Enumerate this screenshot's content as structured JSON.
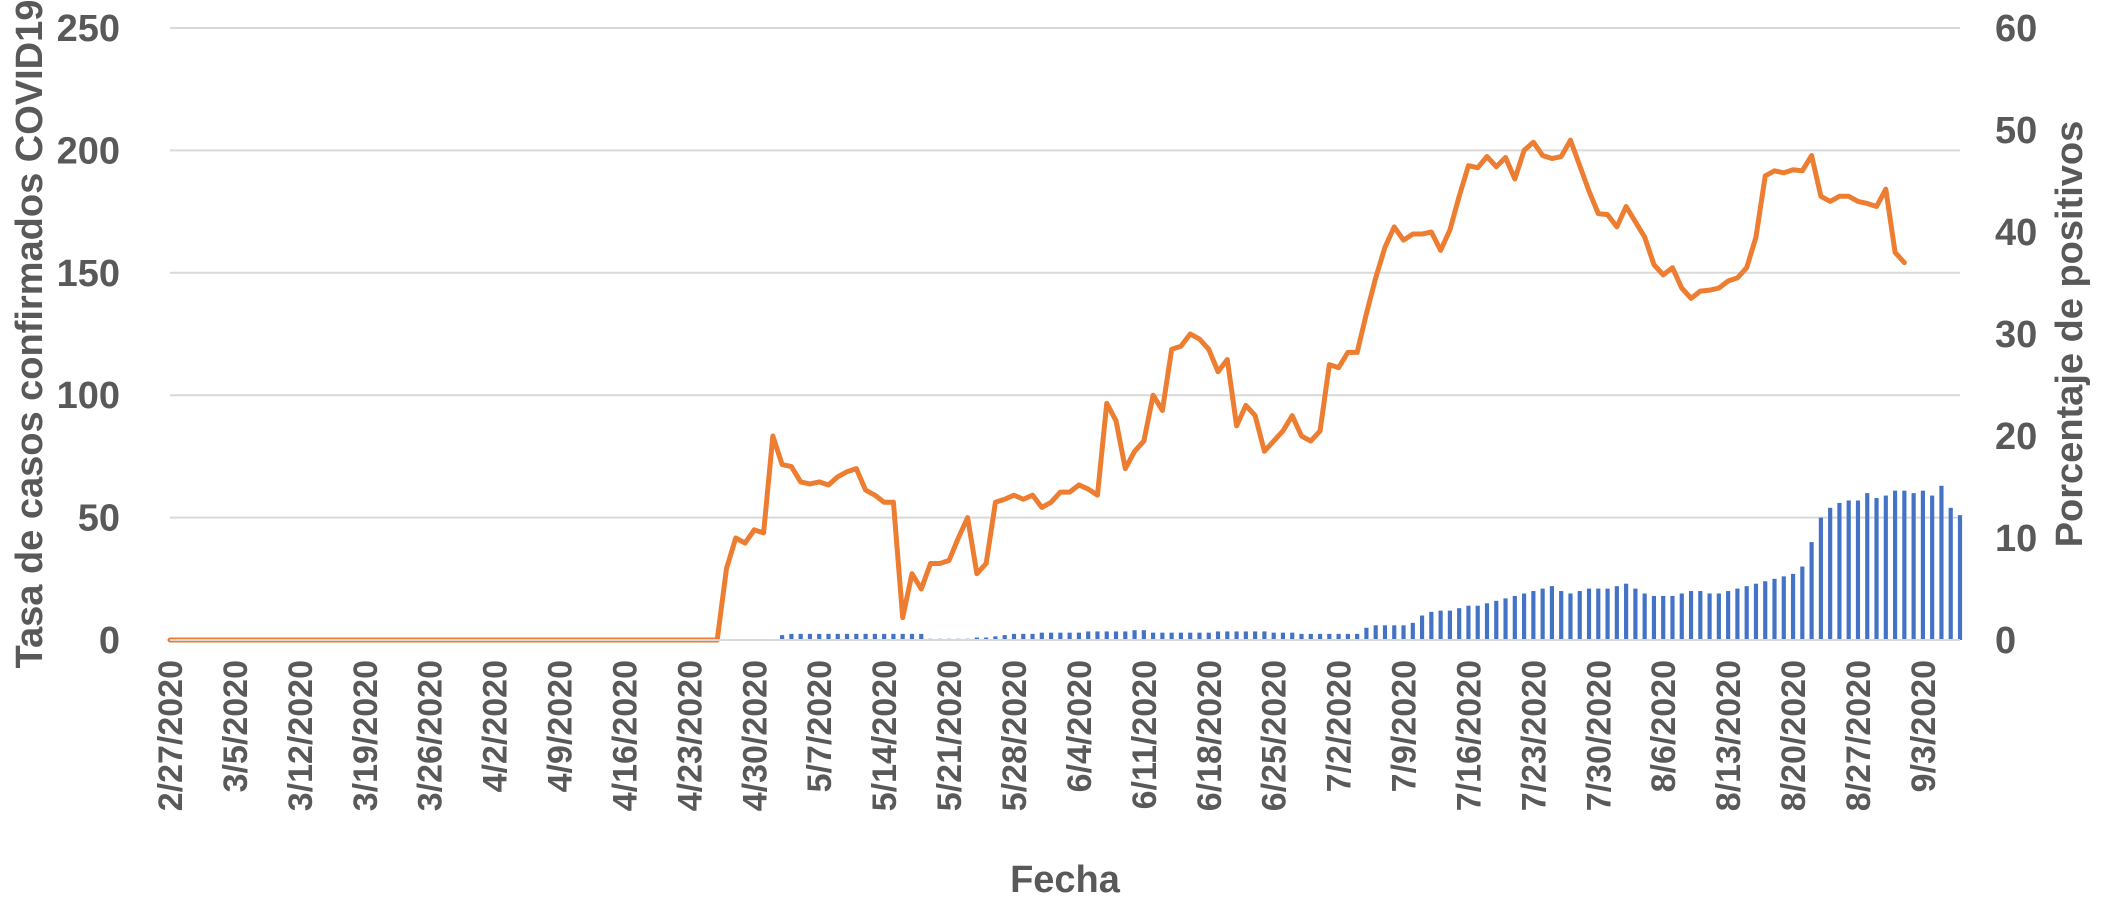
{
  "chart_data": {
    "type": "bar+line",
    "title": "",
    "xlabel": "Fecha",
    "ylabel_left": "Tasa de casos confirmados COVID19",
    "ylabel_right": "Porcentaje de positivos",
    "ylim_left": [
      0,
      250
    ],
    "ylim_right": [
      0,
      60
    ],
    "yticks_left": [
      "0",
      "50",
      "100",
      "150",
      "200",
      "250"
    ],
    "yticks_right": [
      "0",
      "10",
      "20",
      "30",
      "40",
      "50",
      "60"
    ],
    "grid": true,
    "x_start": "2/27/2020",
    "x_tick_labels": [
      "2/27/2020",
      "3/5/2020",
      "3/12/2020",
      "3/19/2020",
      "3/26/2020",
      "4/2/2020",
      "4/9/2020",
      "4/16/2020",
      "4/23/2020",
      "4/30/2020",
      "5/7/2020",
      "5/14/2020",
      "5/21/2020",
      "5/28/2020",
      "6/4/2020",
      "6/11/2020",
      "6/18/2020",
      "6/25/2020",
      "7/2/2020",
      "7/9/2020",
      "7/16/2020",
      "7/23/2020",
      "7/30/2020",
      "8/6/2020",
      "8/13/2020",
      "8/20/2020",
      "8/27/2020",
      "9/3/2020"
    ],
    "series": [
      {
        "kind": "bar",
        "axis": "left",
        "color": "#4472C4",
        "values": [
          0,
          0,
          0,
          0,
          0,
          0,
          0,
          0,
          0,
          0,
          0,
          0,
          0,
          0,
          0,
          0,
          0,
          0,
          0,
          0,
          0,
          0,
          0,
          0,
          0,
          0,
          0,
          0,
          0,
          0,
          0,
          0,
          0,
          0,
          0,
          0,
          0,
          0,
          0,
          0,
          0,
          0,
          0,
          0,
          0,
          0,
          0,
          0,
          0,
          0,
          0,
          0,
          0,
          0,
          0,
          0,
          0,
          0,
          0,
          0,
          0.3,
          0.3,
          0.3,
          0.3,
          0.3,
          0.4,
          2,
          2.5,
          2.5,
          2.5,
          2.5,
          2.5,
          2.5,
          2.5,
          2.5,
          2.5,
          2.5,
          2.5,
          2.5,
          2.5,
          2.5,
          2.5,
          0.5,
          0.5,
          0.5,
          0.5,
          0.5,
          1,
          1,
          1.5,
          2,
          2.5,
          2.5,
          2.5,
          3,
          3,
          3,
          3,
          3,
          3.5,
          3.5,
          3.5,
          3.5,
          3.5,
          4,
          4,
          3,
          3,
          3,
          3,
          3,
          3,
          3,
          3.5,
          3.5,
          3.5,
          3.5,
          3.5,
          3.5,
          3,
          3,
          3,
          2.5,
          2.5,
          2.5,
          2.5,
          2.5,
          2.5,
          2.5,
          5,
          6,
          6,
          6,
          6,
          7,
          10,
          11.5,
          12,
          12,
          13,
          14,
          14,
          15,
          16,
          17,
          18,
          19,
          20,
          21,
          22,
          20,
          19,
          20,
          21,
          21,
          21,
          22,
          23,
          21,
          19,
          18,
          18,
          18,
          19,
          20,
          20,
          19,
          19,
          20,
          21,
          22,
          23,
          24,
          25,
          26,
          27,
          30,
          40,
          50,
          54,
          56,
          57,
          57,
          60,
          58,
          59,
          61,
          61,
          60,
          61,
          59,
          63,
          54,
          51
        ]
      },
      {
        "kind": "line",
        "axis": "right",
        "color": "#ED7D31",
        "values": [
          0,
          0,
          0,
          0,
          0,
          0,
          0,
          0,
          0,
          0,
          0,
          0,
          0,
          0,
          0,
          0,
          0,
          0,
          0,
          0,
          0,
          0,
          0,
          0,
          0,
          0,
          0,
          0,
          0,
          0,
          0,
          0,
          0,
          0,
          0,
          0,
          0,
          0,
          0,
          0,
          0,
          0,
          0,
          0,
          0,
          0,
          0,
          0,
          0,
          0,
          0,
          0,
          0,
          0,
          0,
          0,
          0,
          0,
          0,
          0,
          7,
          10,
          9.5,
          10.8,
          10.5,
          20,
          17.2,
          17,
          15.5,
          15.3,
          15.5,
          15.2,
          16,
          16.5,
          16.8,
          14.7,
          14.2,
          13.5,
          13.5,
          2.2,
          6.5,
          5,
          7.5,
          7.5,
          7.8,
          10,
          12,
          6.5,
          7.5,
          13.5,
          13.8,
          14.2,
          13.8,
          14.2,
          13,
          13.5,
          14.5,
          14.5,
          15.2,
          14.8,
          14.2,
          23.2,
          21.5,
          16.8,
          18.5,
          19.5,
          24,
          22.5,
          28.5,
          28.8,
          30,
          29.5,
          28.5,
          26.3,
          27.5,
          21,
          23,
          22,
          18.5,
          19.5,
          20.5,
          22,
          20,
          19.5,
          20.5,
          27,
          26.7,
          28.2,
          28.2,
          32,
          35.5,
          38.5,
          40.5,
          39.2,
          39.8,
          39.8,
          40,
          38.2,
          40.2,
          43.5,
          46.5,
          46.3,
          47.4,
          46.4,
          47.3,
          45.2,
          48,
          48.8,
          47.5,
          47.2,
          47.4,
          49,
          46.5,
          44,
          41.8,
          41.7,
          40.5,
          42.5,
          41,
          39.5,
          36.8,
          35.8,
          36.5,
          34.5,
          33.5,
          34.2,
          34.3,
          34.5,
          35.2,
          35.5,
          36.5,
          39.5,
          45.5,
          46,
          45.8,
          46.1,
          46,
          47.5,
          43.5,
          43,
          43.5,
          43.5,
          43,
          42.8,
          42.5,
          44.2,
          38,
          37
        ]
      }
    ]
  }
}
